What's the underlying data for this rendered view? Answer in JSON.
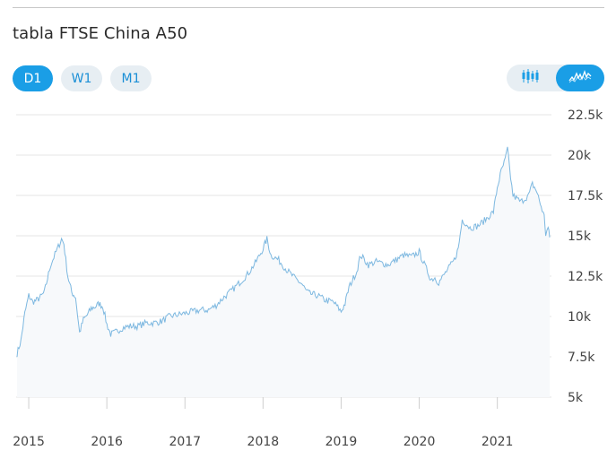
{
  "header": {
    "title": "tabla FTSE China A50"
  },
  "range_buttons": [
    {
      "label": "D1",
      "active": true
    },
    {
      "label": "W1",
      "active": false
    },
    {
      "label": "M1",
      "active": false
    }
  ],
  "chart_type_toggle": {
    "options": [
      {
        "icon": "candlestick-icon",
        "active": false
      },
      {
        "icon": "line-chart-icon",
        "active": true
      }
    ]
  },
  "colors": {
    "accent": "#1a9ee6",
    "line": "#7db8e0",
    "area": "#f7f9fb",
    "grid": "#e4e4e4"
  },
  "chart_data": {
    "type": "area",
    "title": "tabla FTSE China A50",
    "xlabel": "",
    "ylabel": "",
    "ylim": [
      5000,
      22500
    ],
    "yticks": [
      5000,
      7500,
      10000,
      12500,
      15000,
      17500,
      20000,
      22500
    ],
    "ytick_labels": [
      "5k",
      "7.5k",
      "10k",
      "12.5k",
      "15k",
      "17.5k",
      "20k",
      "22.5k"
    ],
    "xticks": [
      2015,
      2016,
      2017,
      2018,
      2019,
      2020,
      2021
    ],
    "xtick_labels": [
      "2015",
      "2016",
      "2017",
      "2018",
      "2019",
      "2020",
      "2021"
    ],
    "grid": true,
    "series": [
      {
        "points": [
          [
            2014.85,
            7700
          ],
          [
            2014.9,
            8500
          ],
          [
            2014.95,
            10200
          ],
          [
            2015.0,
            11300
          ],
          [
            2015.05,
            10900
          ],
          [
            2015.1,
            11000
          ],
          [
            2015.15,
            11200
          ],
          [
            2015.2,
            11500
          ],
          [
            2015.28,
            13200
          ],
          [
            2015.35,
            14000
          ],
          [
            2015.42,
            14800
          ],
          [
            2015.45,
            14500
          ],
          [
            2015.5,
            12500
          ],
          [
            2015.55,
            11500
          ],
          [
            2015.6,
            11200
          ],
          [
            2015.65,
            9000
          ],
          [
            2015.7,
            9800
          ],
          [
            2015.75,
            10100
          ],
          [
            2015.8,
            10500
          ],
          [
            2015.85,
            10600
          ],
          [
            2015.9,
            10800
          ],
          [
            2015.95,
            10600
          ],
          [
            2016.0,
            9500
          ],
          [
            2016.05,
            8900
          ],
          [
            2016.1,
            9000
          ],
          [
            2016.2,
            9300
          ],
          [
            2016.3,
            9400
          ],
          [
            2016.4,
            9400
          ],
          [
            2016.5,
            9600
          ],
          [
            2016.6,
            9600
          ],
          [
            2016.7,
            9700
          ],
          [
            2016.8,
            10000
          ],
          [
            2016.9,
            10100
          ],
          [
            2017.0,
            10200
          ],
          [
            2017.1,
            10300
          ],
          [
            2017.2,
            10400
          ],
          [
            2017.3,
            10400
          ],
          [
            2017.4,
            10700
          ],
          [
            2017.5,
            11200
          ],
          [
            2017.6,
            11600
          ],
          [
            2017.7,
            12100
          ],
          [
            2017.8,
            12600
          ],
          [
            2017.9,
            13300
          ],
          [
            2018.0,
            14200
          ],
          [
            2018.05,
            14800
          ],
          [
            2018.1,
            13800
          ],
          [
            2018.2,
            13500
          ],
          [
            2018.3,
            12900
          ],
          [
            2018.4,
            12400
          ],
          [
            2018.5,
            12000
          ],
          [
            2018.55,
            11600
          ],
          [
            2018.6,
            11400
          ],
          [
            2018.7,
            11300
          ],
          [
            2018.8,
            11000
          ],
          [
            2018.9,
            10900
          ],
          [
            2019.0,
            10300
          ],
          [
            2019.05,
            10800
          ],
          [
            2019.1,
            11800
          ],
          [
            2019.2,
            12800
          ],
          [
            2019.25,
            13800
          ],
          [
            2019.35,
            13200
          ],
          [
            2019.45,
            13400
          ],
          [
            2019.6,
            13200
          ],
          [
            2019.7,
            13500
          ],
          [
            2019.8,
            13800
          ],
          [
            2019.9,
            13700
          ],
          [
            2020.0,
            14000
          ],
          [
            2020.05,
            13400
          ],
          [
            2020.15,
            12300
          ],
          [
            2020.2,
            12400
          ],
          [
            2020.25,
            12100
          ],
          [
            2020.35,
            12800
          ],
          [
            2020.45,
            13500
          ],
          [
            2020.5,
            14200
          ],
          [
            2020.55,
            16000
          ],
          [
            2020.65,
            15500
          ],
          [
            2020.75,
            15600
          ],
          [
            2020.85,
            16000
          ],
          [
            2020.95,
            16500
          ],
          [
            2021.0,
            18000
          ],
          [
            2021.05,
            19000
          ],
          [
            2021.1,
            19700
          ],
          [
            2021.13,
            20400
          ],
          [
            2021.17,
            18600
          ],
          [
            2021.2,
            17500
          ],
          [
            2021.3,
            17100
          ],
          [
            2021.4,
            17500
          ],
          [
            2021.45,
            18200
          ],
          [
            2021.5,
            17800
          ],
          [
            2021.55,
            17000
          ],
          [
            2021.6,
            16200
          ],
          [
            2021.62,
            15100
          ],
          [
            2021.65,
            15500
          ],
          [
            2021.67,
            14900
          ]
        ]
      }
    ]
  }
}
